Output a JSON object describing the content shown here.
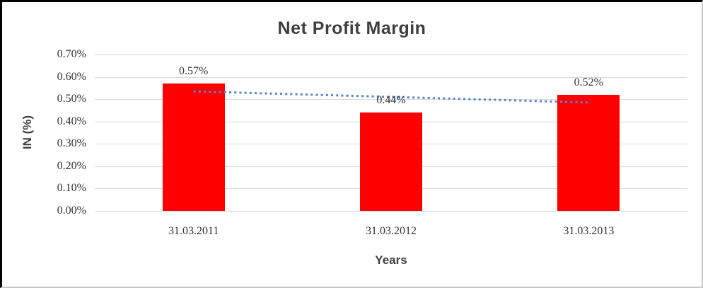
{
  "chart_data": {
    "type": "bar",
    "title": "Net Profit Margin",
    "xlabel": "Years",
    "ylabel": "IN (%)",
    "categories": [
      "31.03.2011",
      "31.03.2012",
      "31.03.2013"
    ],
    "series": [
      {
        "name": "Net Profit Margin",
        "values": [
          0.57,
          0.44,
          0.52
        ],
        "color": "#ff0000"
      }
    ],
    "data_labels": [
      "0.57%",
      "0.44%",
      "0.52%"
    ],
    "y_ticks": [
      "0.70%",
      "0.60%",
      "0.50%",
      "0.40%",
      "0.30%",
      "0.20%",
      "0.10%",
      "0.00%"
    ],
    "ylim": [
      0,
      0.7
    ],
    "y_step": 0.1,
    "grid": true,
    "legend_position": "none",
    "trendline": {
      "type": "linear",
      "style": "dotted",
      "color": "#5585c8",
      "start_value": 0.535,
      "end_value": 0.485
    },
    "colors": {
      "bar": "#ff0000",
      "gridline": "#d9d9d9",
      "title_text": "#3f3f3f",
      "tick_text": "#333333",
      "background": "#ffffff",
      "frame_border_dark": "#000000",
      "frame_border_light": "#c9c9c9"
    }
  }
}
